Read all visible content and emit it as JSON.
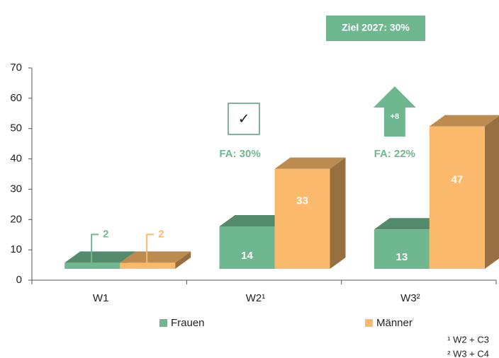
{
  "chart_data": {
    "type": "bar3d",
    "categories": [
      "W1",
      "W2¹",
      "W3²"
    ],
    "series": [
      {
        "name": "Frauen",
        "color": "#6fb88f",
        "values": [
          2,
          14,
          13
        ]
      },
      {
        "name": "Männer",
        "color": "#fbb96b",
        "values": [
          2,
          33,
          47
        ]
      }
    ],
    "ylim": [
      0,
      70
    ],
    "yticks": [
      0,
      10,
      20,
      30,
      40,
      50,
      60,
      70
    ],
    "grid": false,
    "legend": "bottom",
    "goal": "Ziel 2027: 30%",
    "check": "✓",
    "annotations": [
      {
        "category": 1,
        "text": "FA: 30%"
      },
      {
        "category": 2,
        "text": "FA: 22%",
        "arrow": "+8"
      }
    ],
    "footnotes": [
      "¹ W2 + C3",
      "² W3 + C4"
    ]
  }
}
